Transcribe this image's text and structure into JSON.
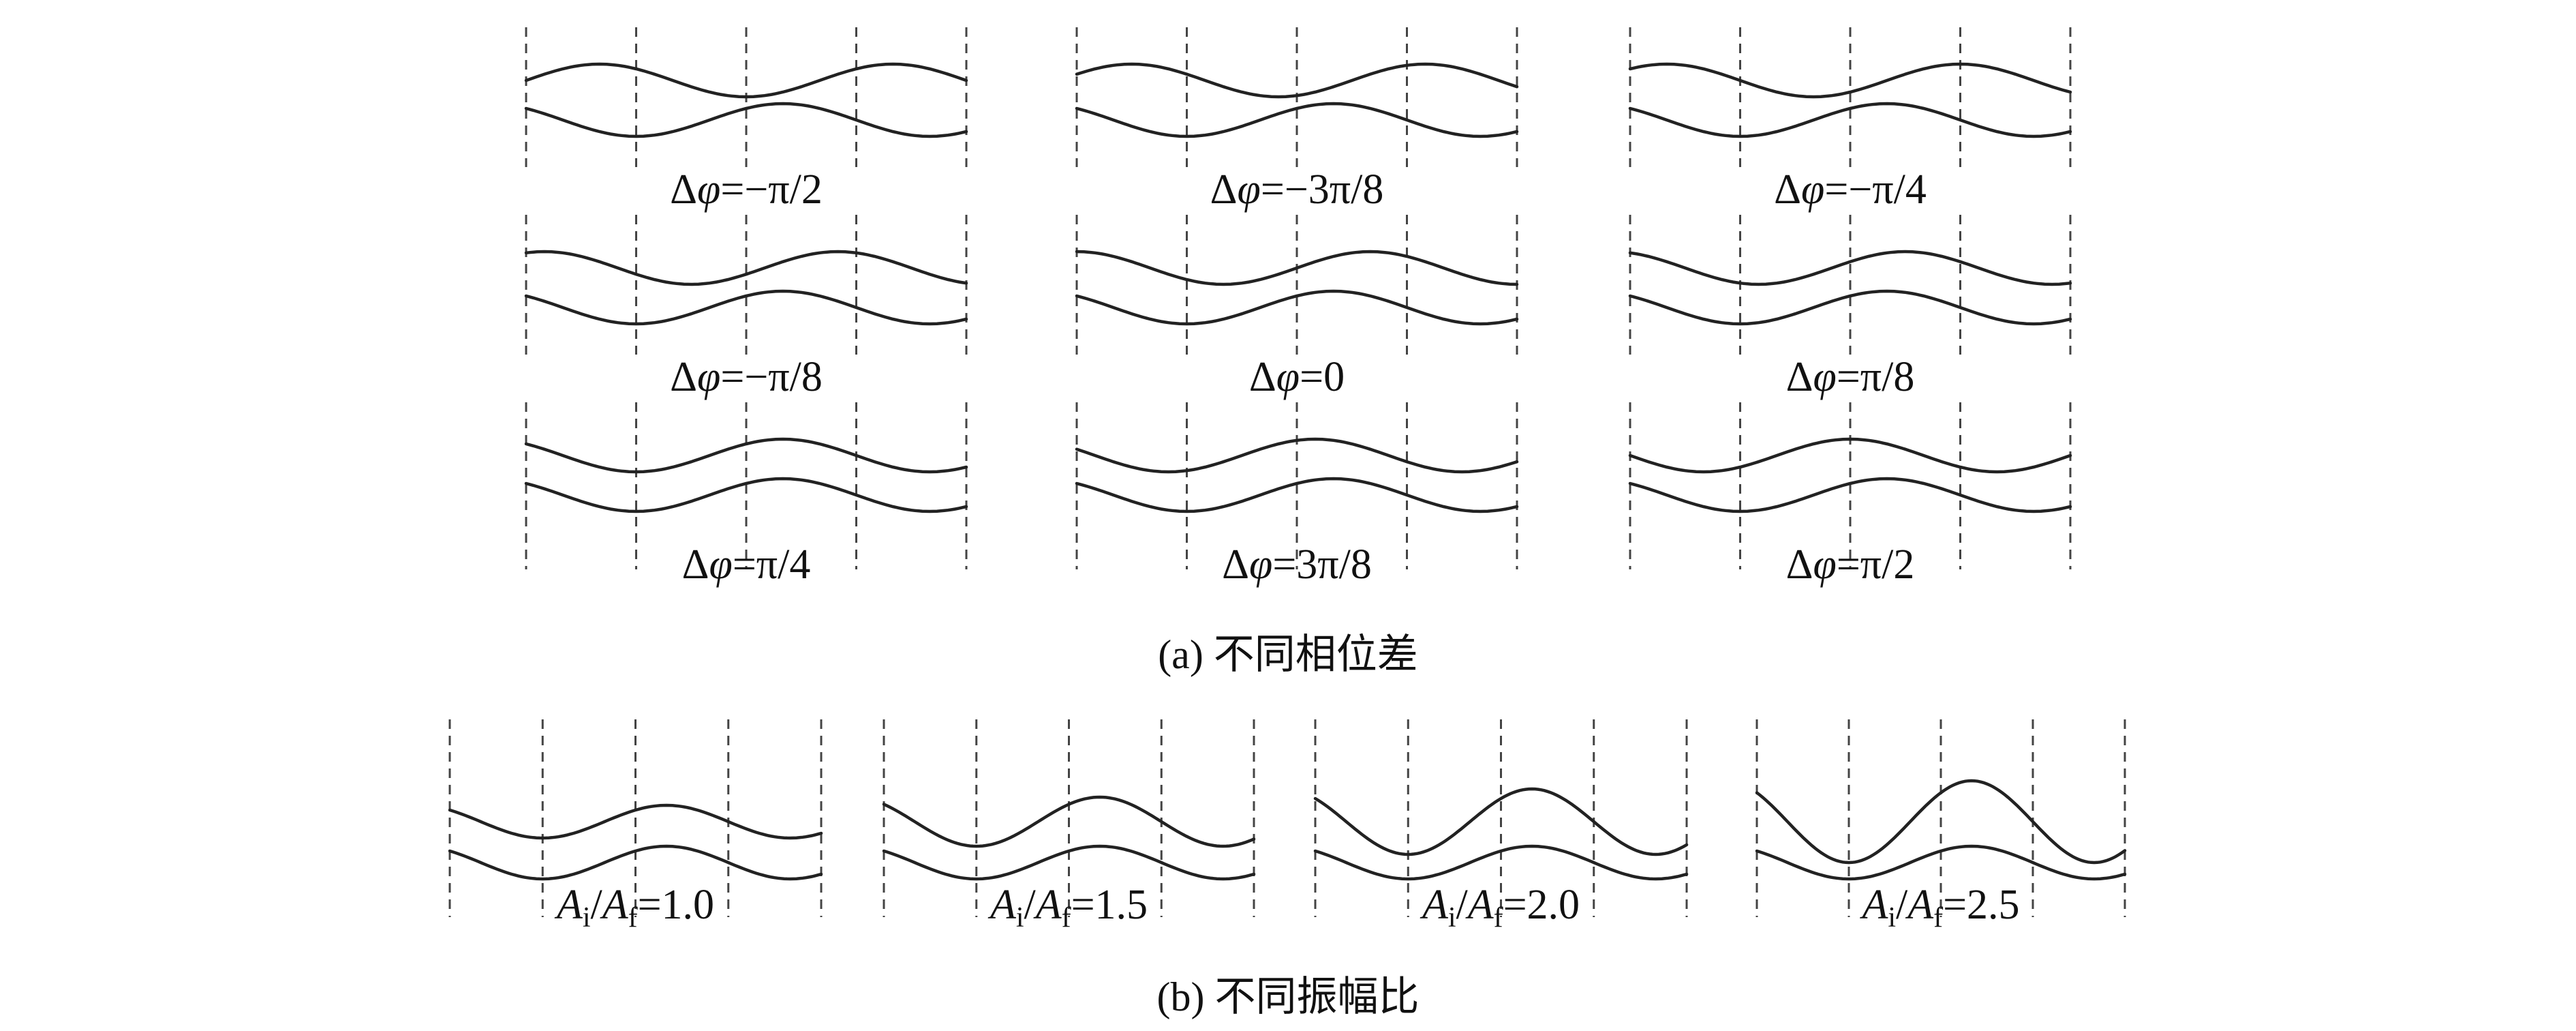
{
  "part_a": {
    "caption": "(a) 不同相位差",
    "panels": [
      {
        "phase_text": "−π/2",
        "phase": -1.5708
      },
      {
        "phase_text": "−3π/8",
        "phase": -1.1781
      },
      {
        "phase_text": "−π/4",
        "phase": -0.7854
      },
      {
        "phase_text": "−π/8",
        "phase": -0.3927
      },
      {
        "phase_text": "0",
        "phase": 0
      },
      {
        "phase_text": "π/8",
        "phase": 0.3927
      },
      {
        "phase_text": "π/4",
        "phase": 0.7854
      },
      {
        "phase_text": "3π/8",
        "phase": 1.1781
      },
      {
        "phase_text": "π/2",
        "phase": 1.5708
      }
    ]
  },
  "part_b": {
    "caption": "(b) 不同振幅比",
    "panels": [
      {
        "ratio_text": "1.0",
        "ratio": 1.0
      },
      {
        "ratio_text": "1.5",
        "ratio": 1.5
      },
      {
        "ratio_text": "2.0",
        "ratio": 2.0
      },
      {
        "ratio_text": "2.5",
        "ratio": 2.5
      }
    ]
  },
  "labels": {
    "delta": "Δ",
    "phi": "φ",
    "equals": "=",
    "amp_i": "A",
    "sub_i": "i",
    "slash": "/",
    "amp_f": "A",
    "sub_f": "f"
  }
}
